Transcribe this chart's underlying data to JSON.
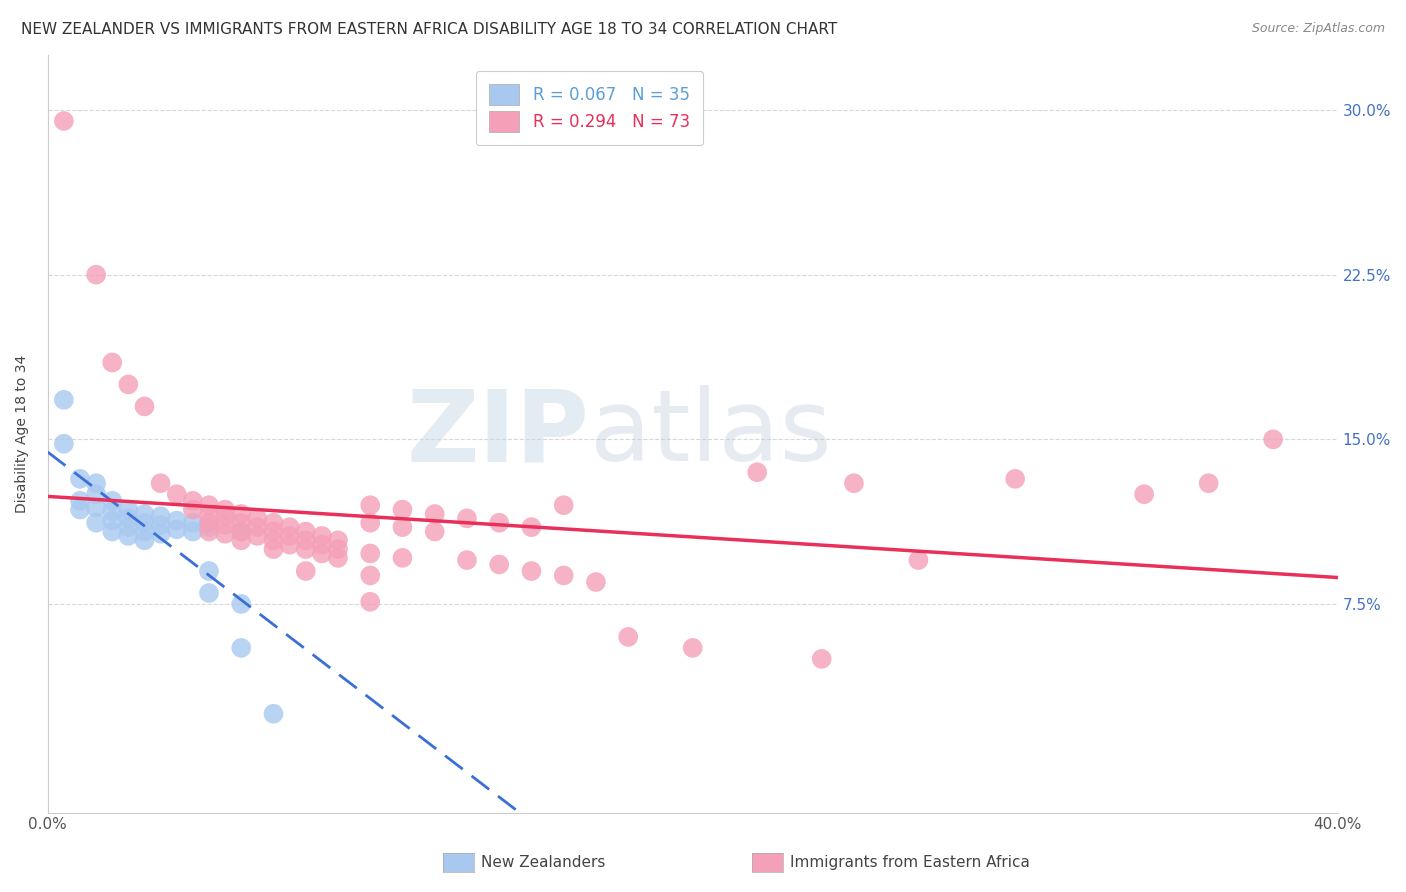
{
  "title": "NEW ZEALANDER VS IMMIGRANTS FROM EASTERN AFRICA DISABILITY AGE 18 TO 34 CORRELATION CHART",
  "source": "Source: ZipAtlas.com",
  "ylabel": "Disability Age 18 to 34",
  "ytick_labels": [
    "7.5%",
    "15.0%",
    "22.5%",
    "30.0%"
  ],
  "ytick_values": [
    0.075,
    0.15,
    0.225,
    0.3
  ],
  "xlim": [
    0.0,
    0.4
  ],
  "ylim": [
    -0.02,
    0.325
  ],
  "legend_nz_label": "R = 0.067   N = 35",
  "legend_imm_label": "R = 0.294   N = 73",
  "watermark": "ZIPatlas",
  "nz_color": "#a8c8f0",
  "imm_color": "#f4a0b8",
  "nz_line_color": "#3a6fd8",
  "imm_line_color": "#e8305a",
  "nz_legend_color": "#5a9fd8",
  "imm_legend_color": "#e8305a",
  "grid_color": "#d8d8d8",
  "background_color": "#ffffff",
  "title_fontsize": 11,
  "axis_label_fontsize": 10,
  "tick_fontsize": 11,
  "legend_fontsize": 12,
  "nz_scatter": [
    [
      0.005,
      0.168
    ],
    [
      0.005,
      0.148
    ],
    [
      0.01,
      0.132
    ],
    [
      0.01,
      0.122
    ],
    [
      0.01,
      0.118
    ],
    [
      0.015,
      0.13
    ],
    [
      0.015,
      0.125
    ],
    [
      0.015,
      0.119
    ],
    [
      0.015,
      0.112
    ],
    [
      0.02,
      0.122
    ],
    [
      0.02,
      0.117
    ],
    [
      0.02,
      0.113
    ],
    [
      0.02,
      0.108
    ],
    [
      0.025,
      0.118
    ],
    [
      0.025,
      0.114
    ],
    [
      0.025,
      0.11
    ],
    [
      0.025,
      0.106
    ],
    [
      0.03,
      0.116
    ],
    [
      0.03,
      0.112
    ],
    [
      0.03,
      0.108
    ],
    [
      0.03,
      0.104
    ],
    [
      0.035,
      0.115
    ],
    [
      0.035,
      0.111
    ],
    [
      0.035,
      0.107
    ],
    [
      0.04,
      0.113
    ],
    [
      0.04,
      0.109
    ],
    [
      0.045,
      0.112
    ],
    [
      0.045,
      0.108
    ],
    [
      0.05,
      0.11
    ],
    [
      0.05,
      0.09
    ],
    [
      0.05,
      0.08
    ],
    [
      0.06,
      0.108
    ],
    [
      0.06,
      0.075
    ],
    [
      0.06,
      0.055
    ],
    [
      0.07,
      0.025
    ]
  ],
  "imm_scatter": [
    [
      0.005,
      0.295
    ],
    [
      0.015,
      0.225
    ],
    [
      0.02,
      0.185
    ],
    [
      0.025,
      0.175
    ],
    [
      0.03,
      0.165
    ],
    [
      0.035,
      0.13
    ],
    [
      0.04,
      0.125
    ],
    [
      0.045,
      0.122
    ],
    [
      0.045,
      0.118
    ],
    [
      0.05,
      0.12
    ],
    [
      0.05,
      0.115
    ],
    [
      0.05,
      0.112
    ],
    [
      0.05,
      0.108
    ],
    [
      0.055,
      0.118
    ],
    [
      0.055,
      0.115
    ],
    [
      0.055,
      0.111
    ],
    [
      0.055,
      0.107
    ],
    [
      0.06,
      0.116
    ],
    [
      0.06,
      0.112
    ],
    [
      0.06,
      0.108
    ],
    [
      0.06,
      0.104
    ],
    [
      0.065,
      0.114
    ],
    [
      0.065,
      0.11
    ],
    [
      0.065,
      0.106
    ],
    [
      0.07,
      0.112
    ],
    [
      0.07,
      0.108
    ],
    [
      0.07,
      0.104
    ],
    [
      0.07,
      0.1
    ],
    [
      0.075,
      0.11
    ],
    [
      0.075,
      0.106
    ],
    [
      0.075,
      0.102
    ],
    [
      0.08,
      0.108
    ],
    [
      0.08,
      0.104
    ],
    [
      0.08,
      0.1
    ],
    [
      0.08,
      0.09
    ],
    [
      0.085,
      0.106
    ],
    [
      0.085,
      0.102
    ],
    [
      0.085,
      0.098
    ],
    [
      0.09,
      0.104
    ],
    [
      0.09,
      0.1
    ],
    [
      0.09,
      0.096
    ],
    [
      0.1,
      0.12
    ],
    [
      0.1,
      0.112
    ],
    [
      0.1,
      0.098
    ],
    [
      0.1,
      0.088
    ],
    [
      0.1,
      0.076
    ],
    [
      0.11,
      0.118
    ],
    [
      0.11,
      0.11
    ],
    [
      0.11,
      0.096
    ],
    [
      0.12,
      0.116
    ],
    [
      0.12,
      0.108
    ],
    [
      0.13,
      0.114
    ],
    [
      0.13,
      0.095
    ],
    [
      0.14,
      0.112
    ],
    [
      0.14,
      0.093
    ],
    [
      0.15,
      0.11
    ],
    [
      0.15,
      0.09
    ],
    [
      0.16,
      0.12
    ],
    [
      0.16,
      0.088
    ],
    [
      0.17,
      0.085
    ],
    [
      0.18,
      0.06
    ],
    [
      0.2,
      0.055
    ],
    [
      0.22,
      0.135
    ],
    [
      0.24,
      0.05
    ],
    [
      0.25,
      0.13
    ],
    [
      0.27,
      0.095
    ],
    [
      0.3,
      0.132
    ],
    [
      0.34,
      0.125
    ],
    [
      0.36,
      0.13
    ],
    [
      0.38,
      0.15
    ]
  ]
}
